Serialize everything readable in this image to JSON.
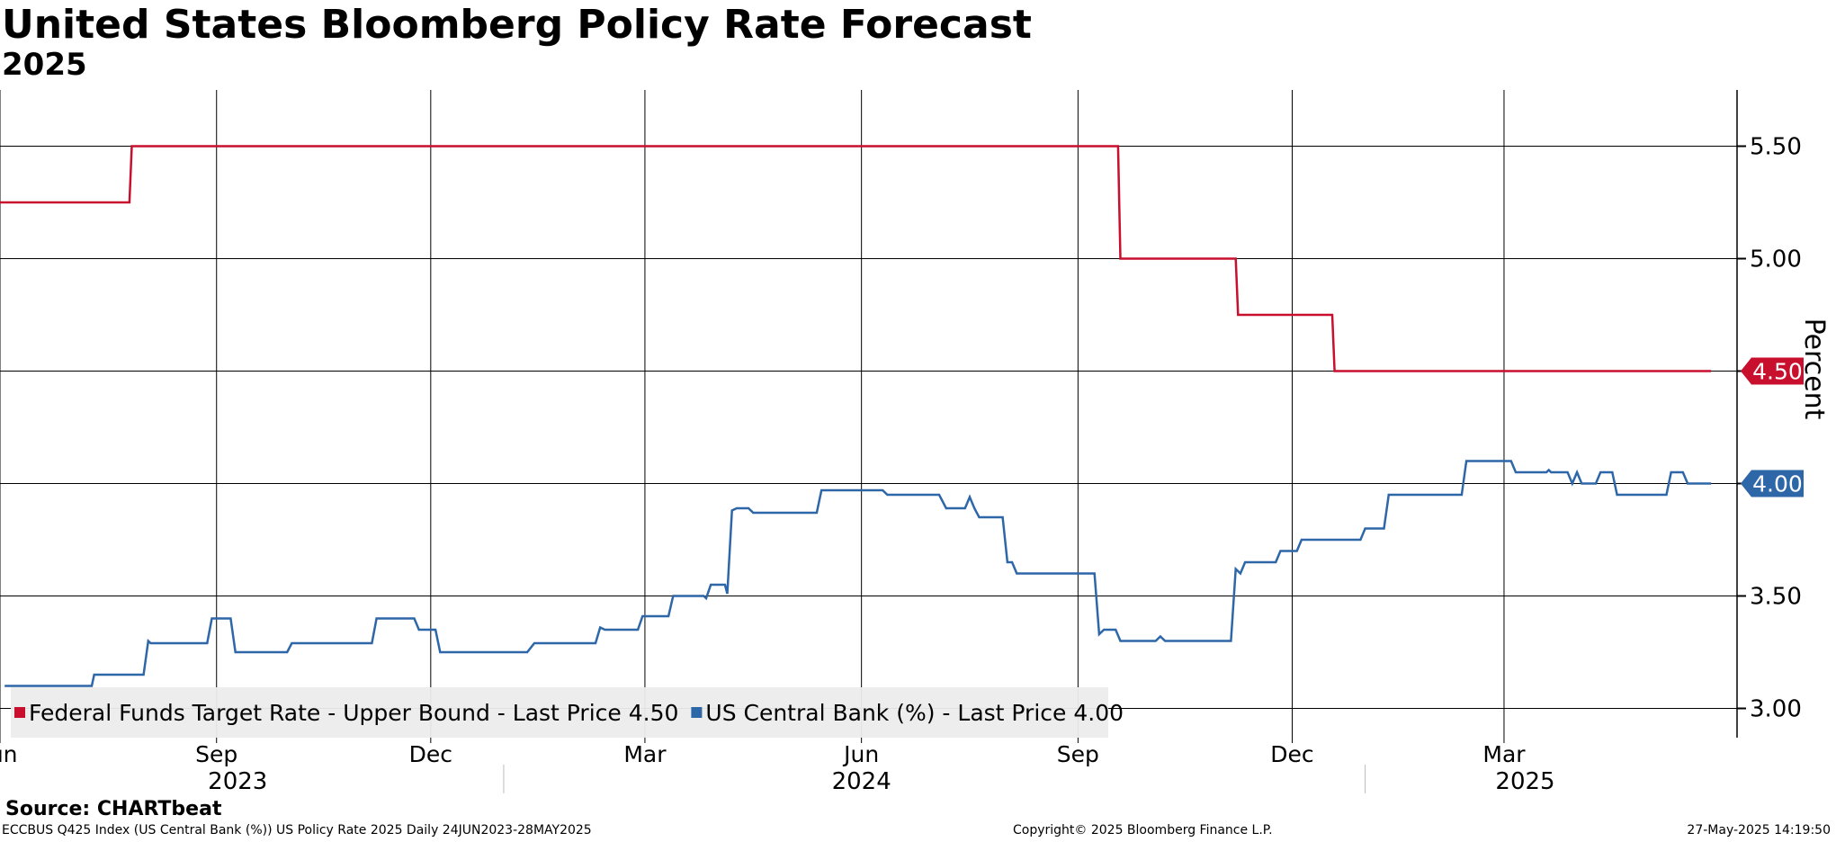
{
  "chart_data": {
    "type": "line",
    "title": "United States Bloomberg Policy Rate Forecast",
    "subtitle": "2025",
    "ylabel": "Percent",
    "ylim": [
      2.87,
      5.75
    ],
    "yticks": [
      "3.00",
      "3.50",
      "4.00",
      "4.50",
      "5.00",
      "5.50"
    ],
    "grid": true,
    "x_month_ticks": [
      {
        "date": "2023-06-01",
        "label": "Jun"
      },
      {
        "date": "2023-09-01",
        "label": "Sep"
      },
      {
        "date": "2023-12-01",
        "label": "Dec"
      },
      {
        "date": "2024-03-01",
        "label": "Mar"
      },
      {
        "date": "2024-06-01",
        "label": "Jun"
      },
      {
        "date": "2024-09-01",
        "label": "Sep"
      },
      {
        "date": "2024-12-01",
        "label": "Dec"
      },
      {
        "date": "2025-03-01",
        "label": "Mar"
      }
    ],
    "x_year_labels": [
      {
        "date": "2023-09-10",
        "label": "2023"
      },
      {
        "date": "2024-06-01",
        "label": "2024"
      },
      {
        "date": "2025-03-10",
        "label": "2025"
      }
    ],
    "x_year_separators": [
      "2024-01-01",
      "2025-01-01"
    ],
    "series": [
      {
        "name": "Federal Funds Target Rate - Upper Bound",
        "legend_text": "Federal Funds Target Rate - Upper Bound - Last Price 4.50",
        "last_price": "4.50",
        "color": "#c8102e",
        "points": [
          [
            "2023-05-31",
            5.25
          ],
          [
            "2023-07-26",
            5.25
          ],
          [
            "2023-07-27",
            5.5
          ],
          [
            "2024-09-18",
            5.5
          ],
          [
            "2024-09-19",
            5.0
          ],
          [
            "2024-11-07",
            5.0
          ],
          [
            "2024-11-08",
            4.75
          ],
          [
            "2024-12-18",
            4.75
          ],
          [
            "2024-12-19",
            4.5
          ],
          [
            "2025-05-28",
            4.5
          ]
        ]
      },
      {
        "name": "US Central Bank (%)",
        "legend_text": "US Central Bank (%) - Last Price 4.00",
        "last_price": "4.00",
        "color": "#2e67a8",
        "points": [
          [
            "2023-06-03",
            3.1
          ],
          [
            "2023-07-10",
            3.1
          ],
          [
            "2023-07-11",
            3.15
          ],
          [
            "2023-08-01",
            3.15
          ],
          [
            "2023-08-03",
            3.3
          ],
          [
            "2023-08-04",
            3.29
          ],
          [
            "2023-08-28",
            3.29
          ],
          [
            "2023-08-30",
            3.4
          ],
          [
            "2023-09-07",
            3.4
          ],
          [
            "2023-09-09",
            3.25
          ],
          [
            "2023-10-01",
            3.25
          ],
          [
            "2023-10-03",
            3.29
          ],
          [
            "2023-11-06",
            3.29
          ],
          [
            "2023-11-08",
            3.4
          ],
          [
            "2023-11-24",
            3.4
          ],
          [
            "2023-11-26",
            3.35
          ],
          [
            "2023-12-03",
            3.35
          ],
          [
            "2023-12-05",
            3.25
          ],
          [
            "2024-01-11",
            3.25
          ],
          [
            "2024-01-14",
            3.29
          ],
          [
            "2024-02-09",
            3.29
          ],
          [
            "2024-02-11",
            3.36
          ],
          [
            "2024-02-13",
            3.35
          ],
          [
            "2024-02-27",
            3.35
          ],
          [
            "2024-02-29",
            3.41
          ],
          [
            "2024-03-11",
            3.41
          ],
          [
            "2024-03-13",
            3.5
          ],
          [
            "2024-03-26",
            3.5
          ],
          [
            "2024-03-27",
            3.49
          ],
          [
            "2024-03-29",
            3.55
          ],
          [
            "2024-04-04",
            3.55
          ],
          [
            "2024-04-05",
            3.51
          ],
          [
            "2024-04-07",
            3.88
          ],
          [
            "2024-04-09",
            3.89
          ],
          [
            "2024-04-14",
            3.89
          ],
          [
            "2024-04-16",
            3.87
          ],
          [
            "2024-05-13",
            3.87
          ],
          [
            "2024-05-15",
            3.97
          ],
          [
            "2024-06-10",
            3.97
          ],
          [
            "2024-06-12",
            3.95
          ],
          [
            "2024-07-04",
            3.95
          ],
          [
            "2024-07-05",
            3.93
          ],
          [
            "2024-07-07",
            3.89
          ],
          [
            "2024-07-15",
            3.89
          ],
          [
            "2024-07-17",
            3.94
          ],
          [
            "2024-07-19",
            3.89
          ],
          [
            "2024-07-21",
            3.85
          ],
          [
            "2024-07-31",
            3.85
          ],
          [
            "2024-08-02",
            3.65
          ],
          [
            "2024-08-04",
            3.65
          ],
          [
            "2024-08-06",
            3.6
          ],
          [
            "2024-09-08",
            3.6
          ],
          [
            "2024-09-10",
            3.33
          ],
          [
            "2024-09-12",
            3.35
          ],
          [
            "2024-09-17",
            3.35
          ],
          [
            "2024-09-19",
            3.3
          ],
          [
            "2024-10-04",
            3.3
          ],
          [
            "2024-10-06",
            3.32
          ],
          [
            "2024-10-08",
            3.3
          ],
          [
            "2024-11-05",
            3.3
          ],
          [
            "2024-11-07",
            3.62
          ],
          [
            "2024-11-09",
            3.6
          ],
          [
            "2024-11-11",
            3.65
          ],
          [
            "2024-11-24",
            3.65
          ],
          [
            "2024-11-26",
            3.7
          ],
          [
            "2024-12-03",
            3.7
          ],
          [
            "2024-12-05",
            3.75
          ],
          [
            "2024-12-30",
            3.75
          ],
          [
            "2025-01-01",
            3.8
          ],
          [
            "2025-01-09",
            3.8
          ],
          [
            "2025-01-11",
            3.95
          ],
          [
            "2025-02-11",
            3.95
          ],
          [
            "2025-02-13",
            4.1
          ],
          [
            "2025-03-04",
            4.1
          ],
          [
            "2025-03-06",
            4.05
          ],
          [
            "2025-03-19",
            4.05
          ],
          [
            "2025-03-20",
            4.06
          ],
          [
            "2025-03-21",
            4.05
          ],
          [
            "2025-03-28",
            4.05
          ],
          [
            "2025-03-30",
            4.0
          ],
          [
            "2025-04-01",
            4.05
          ],
          [
            "2025-04-03",
            4.0
          ],
          [
            "2025-04-09",
            4.0
          ],
          [
            "2025-04-11",
            4.05
          ],
          [
            "2025-04-16",
            4.05
          ],
          [
            "2025-04-18",
            3.95
          ],
          [
            "2025-05-09",
            3.95
          ],
          [
            "2025-05-11",
            4.05
          ],
          [
            "2025-05-16",
            4.05
          ],
          [
            "2025-05-18",
            4.0
          ],
          [
            "2025-05-28",
            4.0
          ]
        ]
      }
    ]
  },
  "footer": {
    "source": "Source: CHARTbeat",
    "description": "ECCBUS Q425 Index (US Central Bank (%)) US Policy Rate 2025  Daily 24JUN2023-28MAY2025",
    "copyright": "Copyright© 2025 Bloomberg Finance L.P.",
    "timestamp": "27-May-2025 14:19:50"
  }
}
